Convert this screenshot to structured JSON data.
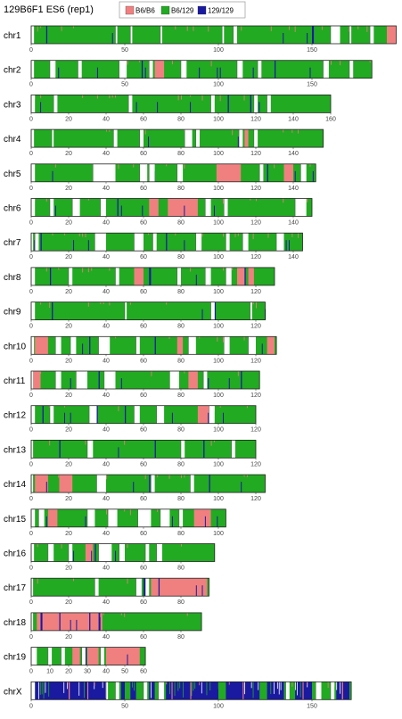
{
  "title": "129B6F1 ES6 (rep1)",
  "chart_data": {
    "type": "genome_ancestry_mosaic",
    "title": "129B6F1 ES6 (rep1)",
    "legend": [
      {
        "label": "B6/B6",
        "color": "#f08080"
      },
      {
        "label": "B6/129",
        "color": "#22aa22"
      },
      {
        "label": "129/129",
        "color": "#1a1aa0"
      }
    ],
    "colors": {
      "B6/B6": "#f08080",
      "B6/129": "#22aa22",
      "129/129": "#1a1aa0",
      "gap": "#ffffff"
    },
    "chromosomes": [
      {
        "name": "chr1",
        "length": 195,
        "ticks": [
          0,
          50,
          100,
          150
        ],
        "b6b6": [
          [
            190,
            195
          ]
        ],
        "gaps": [
          [
            0,
            1.5
          ],
          [
            45,
            46
          ],
          [
            53,
            54
          ],
          [
            69,
            70
          ],
          [
            102,
            103
          ],
          [
            108,
            110
          ],
          [
            160,
            165
          ],
          [
            170,
            171
          ],
          [
            181,
            183
          ]
        ],
        "het129": [
          [
            8,
            8.6
          ],
          [
            150,
            151
          ]
        ]
      },
      {
        "name": "chr2",
        "length": 182,
        "ticks": [
          0,
          50,
          100,
          150
        ],
        "b6b6": [
          [
            66,
            71
          ]
        ],
        "gaps": [
          [
            0,
            1.5
          ],
          [
            10,
            13
          ],
          [
            25,
            27
          ],
          [
            47,
            51
          ],
          [
            63,
            65
          ],
          [
            80,
            83
          ],
          [
            110,
            113
          ],
          [
            121,
            123
          ],
          [
            156,
            159
          ],
          [
            170,
            172
          ]
        ],
        "het129": [
          [
            59,
            59.6
          ],
          [
            130,
            130.6
          ]
        ]
      },
      {
        "name": "chr3",
        "length": 160,
        "ticks": [
          0,
          20,
          40,
          60,
          80,
          100,
          120,
          140,
          160
        ],
        "b6b6": [],
        "gaps": [
          [
            0,
            2
          ],
          [
            12,
            14
          ],
          [
            52,
            54
          ],
          [
            96,
            98
          ],
          [
            119,
            121
          ],
          [
            126,
            128
          ]
        ],
        "het129": [
          [
            105,
            105.6
          ],
          [
            117,
            117.6
          ]
        ]
      },
      {
        "name": "chr4",
        "length": 156,
        "ticks": [
          0,
          20,
          40,
          60,
          80,
          100,
          120,
          140
        ],
        "b6b6": [
          [
            114,
            116
          ]
        ],
        "gaps": [
          [
            0,
            1.5
          ],
          [
            11,
            12
          ],
          [
            44,
            46
          ],
          [
            58,
            60
          ],
          [
            82,
            86
          ],
          [
            88,
            90
          ],
          [
            111,
            113
          ],
          [
            119,
            121
          ]
        ],
        "het129": []
      },
      {
        "name": "chr5",
        "length": 152,
        "ticks": [
          0,
          20,
          40,
          60,
          80,
          100,
          120,
          140
        ],
        "b6b6": [
          [
            99,
            112
          ],
          [
            135,
            140
          ]
        ],
        "gaps": [
          [
            0,
            2
          ],
          [
            33,
            45
          ],
          [
            58,
            62
          ],
          [
            63,
            66
          ],
          [
            78,
            81
          ],
          [
            122,
            124
          ],
          [
            144,
            147
          ]
        ],
        "het129": [
          [
            42,
            42.6
          ],
          [
            126,
            126.6
          ]
        ]
      },
      {
        "name": "chr6",
        "length": 150,
        "ticks": [
          0,
          20,
          40,
          60,
          80,
          100,
          120,
          140
        ],
        "b6b6": [
          [
            63,
            68
          ],
          [
            73,
            89
          ]
        ],
        "gaps": [
          [
            0,
            2
          ],
          [
            10,
            12
          ],
          [
            22,
            26
          ],
          [
            37,
            40
          ],
          [
            93,
            96
          ],
          [
            103,
            105
          ],
          [
            141,
            147
          ]
        ],
        "het129": [
          [
            46,
            46.6
          ],
          [
            141,
            142
          ]
        ]
      },
      {
        "name": "chr7",
        "length": 145,
        "ticks": [
          0,
          20,
          40,
          60,
          80,
          100,
          120,
          140
        ],
        "b6b6": [],
        "gaps": [
          [
            0,
            1
          ],
          [
            2,
            4
          ],
          [
            34,
            40
          ],
          [
            55,
            60
          ],
          [
            65,
            67
          ],
          [
            88,
            91
          ],
          [
            104,
            106
          ],
          [
            113,
            116
          ],
          [
            131,
            135
          ]
        ],
        "het129": [
          [
            5,
            5.6
          ],
          [
            72,
            72.6
          ]
        ]
      },
      {
        "name": "chr8",
        "length": 130,
        "ticks": [
          0,
          20,
          40,
          60,
          80,
          100,
          120
        ],
        "b6b6": [
          [
            55,
            60
          ],
          [
            110,
            114
          ],
          [
            116,
            119
          ]
        ],
        "gaps": [
          [
            0,
            2
          ],
          [
            20,
            22
          ],
          [
            45,
            47
          ],
          [
            78,
            80
          ],
          [
            93,
            96
          ],
          [
            104,
            107
          ]
        ],
        "het129": [
          [
            10,
            10.6
          ],
          [
            63,
            64
          ],
          [
            114,
            114.6
          ]
        ]
      },
      {
        "name": "chr9",
        "length": 125,
        "ticks": [
          0,
          20,
          40,
          60,
          80,
          100,
          120
        ],
        "b6b6": [],
        "gaps": [
          [
            0,
            2
          ],
          [
            50,
            51
          ],
          [
            96,
            98
          ],
          [
            117,
            118
          ]
        ],
        "het129": [
          [
            11,
            11.6
          ],
          [
            98,
            98.6
          ]
        ]
      },
      {
        "name": "chr10",
        "length": 131,
        "ticks": [
          0,
          20,
          40,
          60,
          80,
          100,
          120
        ],
        "b6b6": [
          [
            2,
            9
          ],
          [
            78,
            81
          ],
          [
            126,
            130
          ]
        ],
        "gaps": [
          [
            0,
            1.5
          ],
          [
            13,
            16
          ],
          [
            21,
            24
          ],
          [
            36,
            42
          ],
          [
            56,
            58
          ],
          [
            84,
            88
          ],
          [
            103,
            106
          ],
          [
            116,
            120
          ]
        ],
        "het129": [
          [
            31,
            31.6
          ],
          [
            66,
            66.6
          ]
        ]
      },
      {
        "name": "chr11",
        "length": 122,
        "ticks": [
          0,
          20,
          40,
          60,
          80,
          100,
          120
        ],
        "b6b6": [
          [
            1,
            5
          ],
          [
            84,
            89
          ]
        ],
        "gaps": [
          [
            0,
            1
          ],
          [
            13,
            16
          ],
          [
            24,
            30
          ],
          [
            39,
            45
          ],
          [
            74,
            79
          ],
          [
            92,
            94
          ]
        ],
        "het129": [
          [
            36,
            36.6
          ],
          [
            112,
            112.6
          ]
        ]
      },
      {
        "name": "chr12",
        "length": 120,
        "ticks": [
          0,
          20,
          40,
          60,
          80,
          100,
          120
        ],
        "b6b6": [
          [
            89,
            95
          ]
        ],
        "gaps": [
          [
            0,
            2
          ],
          [
            10,
            12
          ],
          [
            31,
            35
          ],
          [
            55,
            58
          ],
          [
            67,
            71
          ],
          [
            95,
            98
          ]
        ],
        "het129": [
          [
            6,
            6.6
          ],
          [
            35,
            35.6
          ],
          [
            50,
            50.6
          ]
        ]
      },
      {
        "name": "chr13",
        "length": 120,
        "ticks": [
          0,
          20,
          40,
          60,
          80,
          100,
          120
        ],
        "b6b6": [],
        "gaps": [
          [
            0,
            1
          ],
          [
            30,
            33
          ],
          [
            80,
            82
          ],
          [
            107,
            109
          ]
        ],
        "het129": [
          [
            15,
            15.6
          ],
          [
            66,
            66.6
          ],
          [
            92,
            92.6
          ]
        ]
      },
      {
        "name": "chr14",
        "length": 125,
        "ticks": [
          0,
          20,
          40,
          60,
          80,
          100,
          120
        ],
        "b6b6": [
          [
            2,
            9
          ],
          [
            15,
            22
          ]
        ],
        "gaps": [
          [
            0,
            1
          ],
          [
            35,
            40
          ],
          [
            64,
            66
          ],
          [
            85,
            87
          ]
        ],
        "het129": [
          [
            63,
            63.6
          ],
          [
            95,
            95.6
          ]
        ]
      },
      {
        "name": "chr15",
        "length": 104,
        "ticks": [
          0,
          20,
          40,
          60,
          80,
          100
        ],
        "b6b6": [
          [
            9,
            14
          ],
          [
            87,
            96
          ]
        ],
        "gaps": [
          [
            0,
            2
          ],
          [
            4,
            7
          ],
          [
            30,
            34
          ],
          [
            41,
            46
          ],
          [
            57,
            64
          ],
          [
            69,
            74
          ],
          [
            79,
            81
          ]
        ],
        "het129": [
          [
            59,
            59.6
          ],
          [
            73,
            73.6
          ]
        ]
      },
      {
        "name": "chr16",
        "length": 98,
        "ticks": [
          0,
          20,
          40,
          60,
          80
        ],
        "b6b6": [
          [
            29,
            33
          ]
        ],
        "gaps": [
          [
            0,
            1.5
          ],
          [
            9,
            12
          ],
          [
            20,
            22
          ],
          [
            36,
            43
          ],
          [
            47,
            50
          ],
          [
            61,
            63
          ],
          [
            67,
            70
          ]
        ],
        "het129": [
          [
            34,
            34.6
          ],
          [
            49,
            49.6
          ]
        ]
      },
      {
        "name": "chr17",
        "length": 95,
        "ticks": [
          0,
          20,
          40,
          60,
          80
        ],
        "b6b6": [
          [
            64,
            94
          ]
        ],
        "gaps": [
          [
            0,
            1
          ],
          [
            34,
            36
          ],
          [
            56,
            59
          ],
          [
            61,
            63
          ]
        ],
        "het129": [
          [
            60,
            61
          ],
          [
            68,
            68.6
          ]
        ]
      },
      {
        "name": "chr18",
        "length": 91,
        "ticks": [
          0,
          20,
          40,
          60,
          80
        ],
        "b6b6": [
          [
            3,
            38
          ]
        ],
        "gaps": [
          [
            0,
            1
          ]
        ],
        "het129": [
          [
            5,
            6
          ],
          [
            15,
            15.6
          ],
          [
            31,
            31.6
          ],
          [
            36,
            37
          ]
        ]
      },
      {
        "name": "chr19",
        "length": 61,
        "ticks": [
          0,
          10,
          20,
          30,
          40,
          50,
          60
        ],
        "b6b6": [
          [
            22,
            26
          ],
          [
            30,
            36
          ],
          [
            40,
            58
          ]
        ],
        "gaps": [
          [
            0,
            3
          ],
          [
            9,
            11
          ],
          [
            16,
            18
          ],
          [
            27,
            29
          ],
          [
            37,
            39
          ]
        ],
        "het129": [
          [
            29,
            29.6
          ]
        ]
      },
      {
        "name": "chrX",
        "length": 171,
        "ticks": [
          0,
          50,
          100,
          150
        ],
        "b6b6": [],
        "gaps": [
          [
            0,
            2
          ],
          [
            40,
            41
          ],
          [
            45,
            47
          ],
          [
            60,
            62
          ],
          [
            68,
            71
          ],
          [
            136,
            138
          ],
          [
            152,
            155
          ],
          [
            160,
            162
          ]
        ],
        "het129": [
          [
            2,
            40
          ],
          [
            48,
            50
          ],
          [
            53,
            56
          ],
          [
            63,
            66
          ],
          [
            72,
            100
          ],
          [
            104,
            122
          ],
          [
            126,
            135
          ],
          [
            141,
            150
          ],
          [
            163,
            170
          ]
        ],
        "pink_flecks": [
          [
            20,
            20.6
          ],
          [
            30,
            30.5
          ],
          [
            75,
            75.5
          ],
          [
            85,
            85.5
          ],
          [
            113,
            113.5
          ],
          [
            145,
            145.5
          ],
          [
            166,
            166.6
          ]
        ]
      }
    ]
  }
}
